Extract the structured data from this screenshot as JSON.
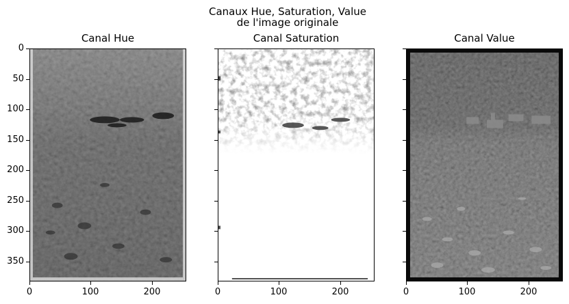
{
  "figure": {
    "suptitle_line1": "Canaux Hue, Saturation, Value",
    "suptitle_line2": "de l'image originale"
  },
  "panels": [
    {
      "title": "Canal Hue",
      "description": "grayscale hue channel of a meadow scene with village"
    },
    {
      "title": "Canal Saturation",
      "description": "grayscale saturation channel, mostly white lower half, dark textured forest top"
    },
    {
      "title": "Canal Value",
      "description": "grayscale value channel, dark forest, houses, flower meadow with dark border"
    }
  ],
  "axes": {
    "y_ticks": [
      "0",
      "50",
      "100",
      "150",
      "200",
      "250",
      "300",
      "350"
    ],
    "x_ticks": [
      "0",
      "100",
      "200"
    ],
    "y_range": [
      0,
      383
    ],
    "x_range": [
      0,
      256
    ]
  },
  "colors": {
    "hue_base": "#4a4a4a",
    "saturation_base": "#ffffff",
    "value_base": "#3a3a3a",
    "frame": "#000000"
  }
}
